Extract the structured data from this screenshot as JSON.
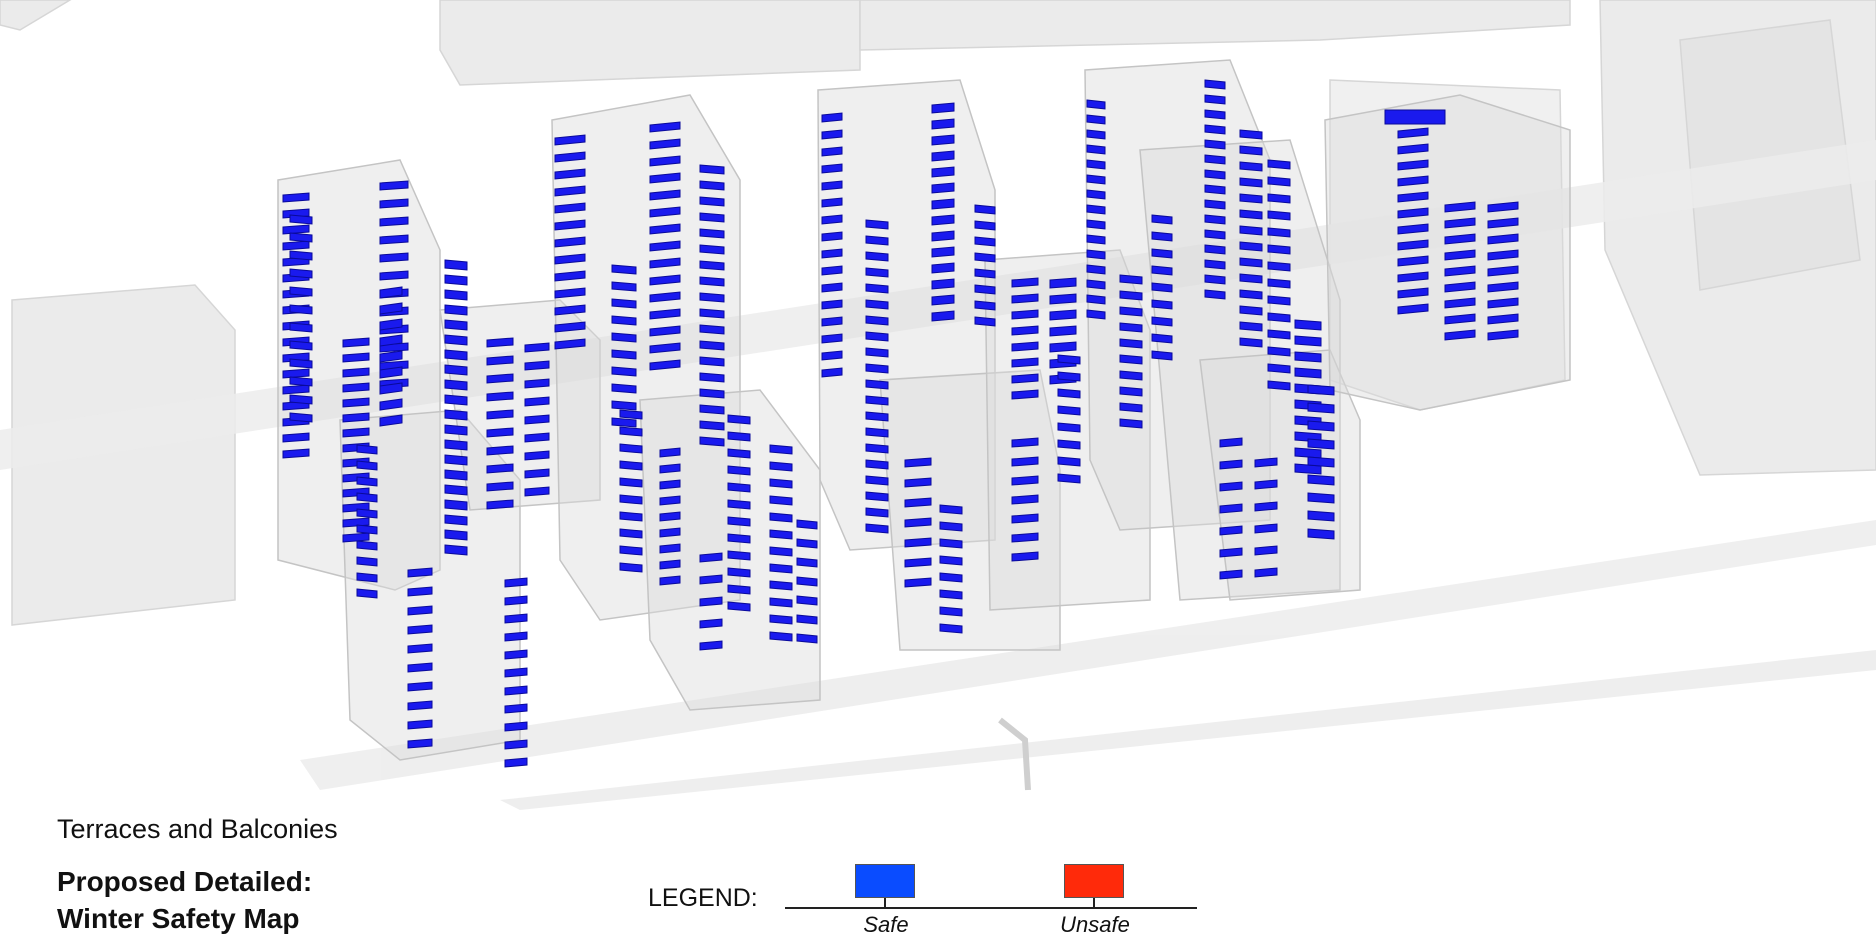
{
  "captions": {
    "subtitle": "Terraces and Balconies",
    "title_line1": "Proposed Detailed:",
    "title_line2": "Winter Safety Map"
  },
  "legend": {
    "label": "LEGEND:",
    "items": [
      {
        "label": "Safe",
        "color": "#0a4cff"
      },
      {
        "label": "Unsafe",
        "color": "#ff2a0a"
      }
    ]
  },
  "colors": {
    "balcony_safe": "#1a1aee",
    "balcony_edge": "#0a0a9a",
    "massing_fill": "#dcdcdc",
    "massing_stroke": "#c4c4c4",
    "road": "#ececec"
  }
}
